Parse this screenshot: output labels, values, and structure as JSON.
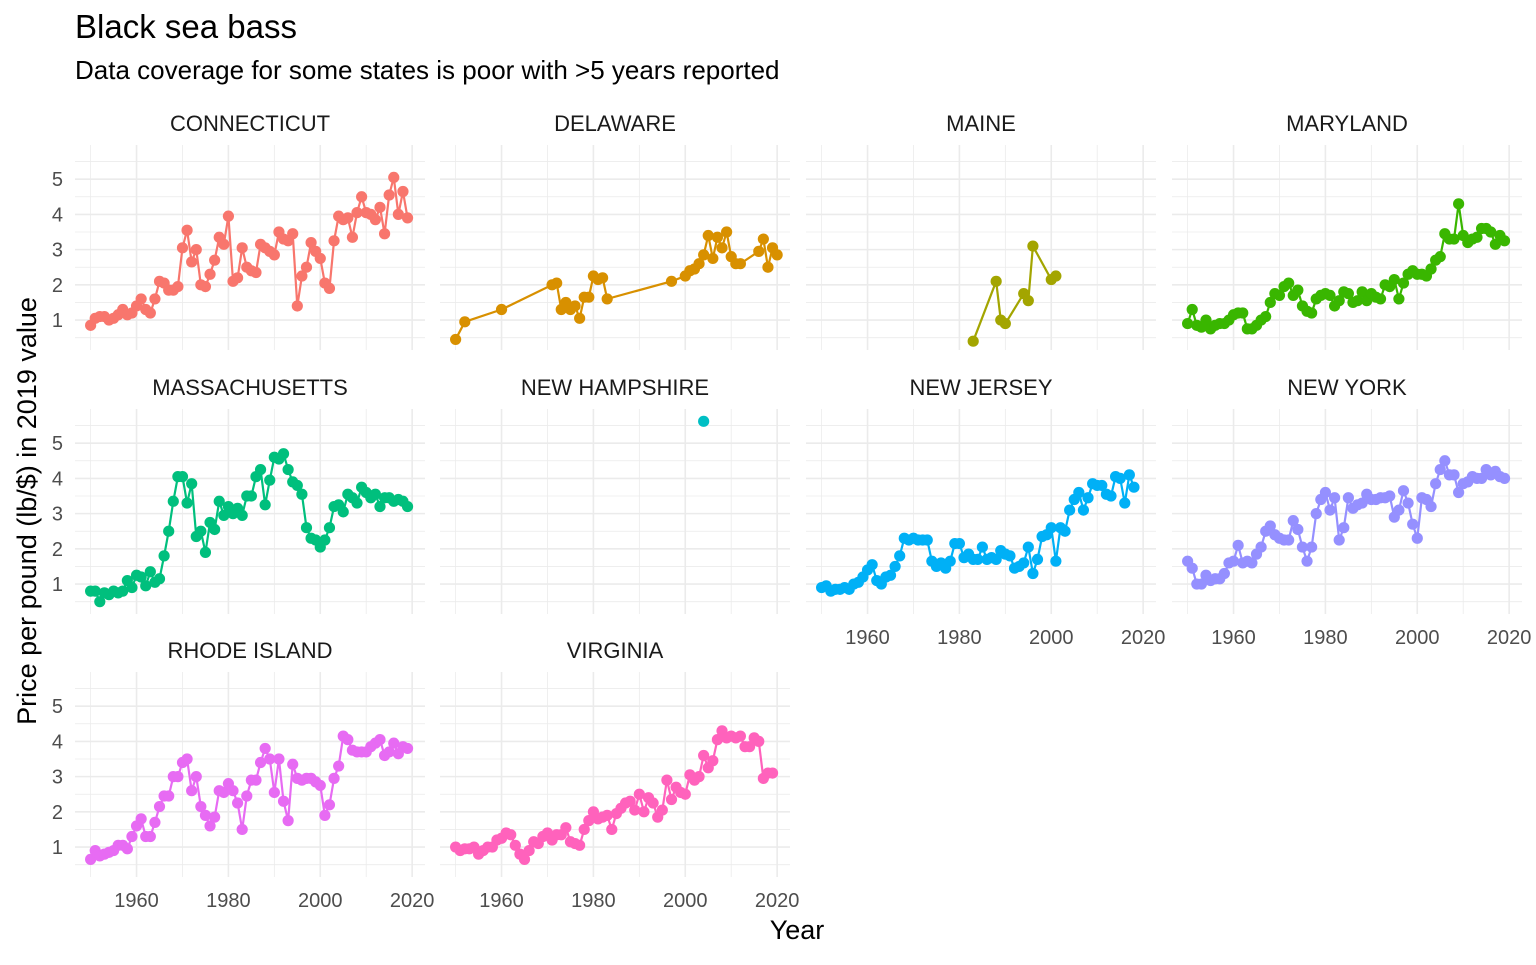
{
  "chart_data": {
    "type": "line",
    "title": "Black sea bass",
    "subtitle": "Data coverage for some states is poor with >5 years reported",
    "x_label": "Year",
    "y_label": "Price per pound (lb/$) in 2019 value",
    "xlim": [
      1946.6,
      2022.8
    ],
    "ylim": [
      0.15,
      5.97
    ],
    "xticks": [
      1960,
      1980,
      2000,
      2020
    ],
    "yticks": [
      1,
      2,
      3,
      4,
      5
    ],
    "x_minor_ticks": [
      1950,
      1970,
      1990,
      2010
    ],
    "y_minor_ticks": [
      0.5,
      1.5,
      2.5,
      3.5,
      4.5,
      5.5
    ],
    "grid": true,
    "columns": 4,
    "series": [
      {
        "name": "CONNECTICUT",
        "color": "#F8766D",
        "x": [
          1950,
          1951,
          1952,
          1953,
          1954,
          1955,
          1956,
          1957,
          1958,
          1959,
          1960,
          1961,
          1962,
          1963,
          1964,
          1965,
          1966,
          1967,
          1968,
          1969,
          1970,
          1971,
          1972,
          1973,
          1974,
          1975,
          1976,
          1977,
          1978,
          1979,
          1980,
          1981,
          1982,
          1983,
          1984,
          1985,
          1986,
          1987,
          1988,
          1989,
          1990,
          1991,
          1992,
          1993,
          1994,
          1995,
          1996,
          1997,
          1998,
          1999,
          2000,
          2001,
          2002,
          2003,
          2004,
          2005,
          2006,
          2007,
          2008,
          2009,
          2010,
          2011,
          2012,
          2013,
          2014,
          2015,
          2016,
          2017,
          2018,
          2019
        ],
        "values": [
          0.85,
          1.05,
          1.1,
          1.1,
          1.0,
          1.05,
          1.15,
          1.3,
          1.15,
          1.2,
          1.4,
          1.6,
          1.3,
          1.2,
          1.6,
          2.1,
          2.05,
          1.85,
          1.85,
          1.95,
          3.05,
          3.55,
          2.65,
          3.0,
          2.0,
          1.95,
          2.3,
          2.7,
          3.35,
          3.15,
          3.95,
          2.1,
          2.2,
          3.05,
          2.5,
          2.4,
          2.35,
          3.15,
          3.05,
          2.95,
          2.85,
          3.5,
          3.3,
          3.25,
          3.45,
          1.4,
          2.25,
          2.5,
          3.2,
          2.95,
          2.75,
          2.05,
          1.9,
          3.25,
          3.95,
          3.85,
          3.9,
          3.35,
          4.05,
          4.5,
          4.05,
          4.0,
          3.85,
          4.2,
          3.45,
          4.55,
          5.05,
          4.0,
          4.65,
          3.9
        ]
      },
      {
        "name": "DELAWARE",
        "color": "#D89000",
        "x": [
          1950,
          1952,
          1960,
          1971,
          1972,
          1973,
          1974,
          1975,
          1976,
          1977,
          1978,
          1979,
          1980,
          1981,
          1982,
          1983,
          1997,
          2000,
          2001,
          2002,
          2003,
          2004,
          2005,
          2006,
          2007,
          2008,
          2009,
          2010,
          2011,
          2012,
          2016,
          2017,
          2018,
          2019,
          2020
        ],
        "values": [
          0.45,
          0.95,
          1.3,
          2.0,
          2.05,
          1.3,
          1.5,
          1.3,
          1.4,
          1.05,
          1.65,
          1.65,
          2.25,
          2.15,
          2.2,
          1.6,
          2.1,
          2.25,
          2.4,
          2.45,
          2.6,
          2.85,
          3.4,
          2.75,
          3.35,
          3.05,
          3.5,
          2.8,
          2.6,
          2.6,
          2.95,
          3.3,
          2.5,
          3.05,
          2.85
        ]
      },
      {
        "name": "MAINE",
        "color": "#A3A500",
        "x": [
          1983,
          1988,
          1989,
          1990,
          1994,
          1995,
          1996,
          2000,
          2001
        ],
        "values": [
          0.4,
          2.1,
          1.0,
          0.9,
          1.75,
          1.55,
          3.1,
          2.15,
          2.25
        ]
      },
      {
        "name": "MARYLAND",
        "color": "#39B600",
        "x": [
          1950,
          1951,
          1952,
          1953,
          1954,
          1955,
          1956,
          1957,
          1958,
          1959,
          1960,
          1961,
          1962,
          1963,
          1964,
          1965,
          1966,
          1967,
          1968,
          1969,
          1970,
          1971,
          1972,
          1973,
          1974,
          1975,
          1976,
          1977,
          1978,
          1979,
          1980,
          1981,
          1982,
          1983,
          1984,
          1985,
          1986,
          1987,
          1988,
          1989,
          1990,
          1991,
          1992,
          1993,
          1994,
          1995,
          1996,
          1997,
          1998,
          1999,
          2000,
          2001,
          2002,
          2003,
          2004,
          2005,
          2006,
          2007,
          2008,
          2009,
          2010,
          2011,
          2012,
          2013,
          2014,
          2015,
          2016,
          2017,
          2018,
          2019
        ],
        "values": [
          0.9,
          1.3,
          0.85,
          0.8,
          1.0,
          0.75,
          0.85,
          0.9,
          0.9,
          1.0,
          1.15,
          1.2,
          1.2,
          0.75,
          0.75,
          0.85,
          1.0,
          1.1,
          1.5,
          1.75,
          1.7,
          1.95,
          2.05,
          1.7,
          1.85,
          1.4,
          1.25,
          1.2,
          1.6,
          1.7,
          1.75,
          1.7,
          1.4,
          1.55,
          1.8,
          1.75,
          1.5,
          1.55,
          1.8,
          1.55,
          1.75,
          1.65,
          1.6,
          2.0,
          1.95,
          2.15,
          1.6,
          2.05,
          2.3,
          2.4,
          2.3,
          2.3,
          2.25,
          2.45,
          2.7,
          2.8,
          3.45,
          3.3,
          3.3,
          4.3,
          3.4,
          3.2,
          3.3,
          3.35,
          3.6,
          3.6,
          3.5,
          3.15,
          3.4,
          3.25
        ]
      },
      {
        "name": "MASSACHUSETTS",
        "color": "#00BF7D",
        "x": [
          1950,
          1951,
          1952,
          1953,
          1954,
          1955,
          1956,
          1957,
          1958,
          1959,
          1960,
          1961,
          1962,
          1963,
          1964,
          1965,
          1966,
          1967,
          1968,
          1969,
          1970,
          1971,
          1972,
          1973,
          1974,
          1975,
          1976,
          1977,
          1978,
          1979,
          1980,
          1981,
          1982,
          1983,
          1984,
          1985,
          1986,
          1987,
          1988,
          1989,
          1990,
          1991,
          1992,
          1993,
          1994,
          1995,
          1996,
          1997,
          1998,
          1999,
          2000,
          2001,
          2002,
          2003,
          2004,
          2005,
          2006,
          2007,
          2008,
          2009,
          2010,
          2011,
          2012,
          2013,
          2014,
          2015,
          2016,
          2017,
          2018,
          2019
        ],
        "values": [
          0.8,
          0.8,
          0.5,
          0.75,
          0.7,
          0.8,
          0.75,
          0.8,
          1.1,
          0.9,
          1.25,
          1.2,
          0.95,
          1.35,
          1.05,
          1.15,
          1.8,
          2.5,
          3.35,
          4.05,
          4.05,
          3.3,
          3.85,
          2.35,
          2.5,
          1.9,
          2.75,
          2.55,
          3.35,
          2.95,
          3.2,
          3.0,
          3.15,
          2.95,
          3.5,
          3.5,
          4.05,
          4.25,
          3.25,
          3.95,
          4.6,
          4.55,
          4.7,
          4.25,
          3.9,
          3.8,
          3.55,
          2.6,
          2.3,
          2.25,
          2.05,
          2.25,
          2.6,
          3.2,
          3.25,
          3.05,
          3.55,
          3.45,
          3.3,
          3.75,
          3.6,
          3.45,
          3.55,
          3.2,
          3.45,
          3.45,
          3.35,
          3.4,
          3.35,
          3.2
        ]
      },
      {
        "name": "NEW HAMPSHIRE",
        "color": "#00BFC4",
        "x": [
          2004
        ],
        "values": [
          5.62
        ]
      },
      {
        "name": "NEW JERSEY",
        "color": "#00B0F6",
        "x": [
          1950,
          1951,
          1952,
          1953,
          1954,
          1955,
          1956,
          1957,
          1958,
          1959,
          1960,
          1961,
          1962,
          1963,
          1964,
          1965,
          1966,
          1967,
          1968,
          1969,
          1970,
          1971,
          1972,
          1973,
          1974,
          1975,
          1976,
          1977,
          1978,
          1979,
          1980,
          1981,
          1982,
          1983,
          1984,
          1985,
          1986,
          1987,
          1988,
          1989,
          1990,
          1991,
          1992,
          1993,
          1994,
          1995,
          1996,
          1997,
          1998,
          1999,
          2000,
          2001,
          2002,
          2003,
          2004,
          2005,
          2006,
          2007,
          2008,
          2009,
          2010,
          2011,
          2012,
          2013,
          2014,
          2015,
          2016,
          2017,
          2018
        ],
        "values": [
          0.9,
          0.95,
          0.8,
          0.85,
          0.85,
          0.9,
          0.85,
          1.0,
          1.05,
          1.2,
          1.4,
          1.55,
          1.1,
          1.0,
          1.2,
          1.25,
          1.5,
          1.8,
          2.3,
          2.25,
          2.3,
          2.25,
          2.25,
          2.25,
          1.65,
          1.5,
          1.6,
          1.45,
          1.65,
          2.15,
          2.15,
          1.75,
          1.85,
          1.7,
          1.7,
          2.05,
          1.7,
          1.75,
          1.7,
          1.95,
          1.85,
          1.8,
          1.45,
          1.5,
          1.6,
          2.05,
          1.3,
          1.7,
          2.35,
          2.4,
          2.6,
          1.65,
          2.6,
          2.5,
          3.1,
          3.4,
          3.6,
          3.1,
          3.45,
          3.85,
          3.8,
          3.8,
          3.55,
          3.5,
          4.05,
          4.0,
          3.3,
          4.1,
          3.75
        ]
      },
      {
        "name": "NEW YORK",
        "color": "#9590FF",
        "x": [
          1950,
          1951,
          1952,
          1953,
          1954,
          1955,
          1956,
          1957,
          1958,
          1959,
          1960,
          1961,
          1962,
          1963,
          1964,
          1965,
          1966,
          1967,
          1968,
          1969,
          1970,
          1971,
          1972,
          1973,
          1974,
          1975,
          1976,
          1977,
          1978,
          1979,
          1980,
          1981,
          1982,
          1983,
          1984,
          1985,
          1986,
          1987,
          1988,
          1989,
          1990,
          1991,
          1992,
          1993,
          1994,
          1995,
          1996,
          1997,
          1998,
          1999,
          2000,
          2001,
          2002,
          2003,
          2004,
          2005,
          2006,
          2007,
          2008,
          2009,
          2010,
          2011,
          2012,
          2013,
          2014,
          2015,
          2016,
          2017,
          2018,
          2019
        ],
        "values": [
          1.65,
          1.45,
          1.0,
          1.0,
          1.25,
          1.1,
          1.15,
          1.15,
          1.3,
          1.6,
          1.65,
          2.1,
          1.6,
          1.65,
          1.6,
          1.85,
          2.05,
          2.5,
          2.65,
          2.4,
          2.3,
          2.25,
          2.25,
          2.8,
          2.55,
          2.05,
          1.65,
          2.05,
          3.0,
          3.4,
          3.6,
          3.1,
          3.45,
          2.25,
          2.6,
          3.45,
          3.15,
          3.25,
          3.3,
          3.55,
          3.4,
          3.4,
          3.45,
          3.45,
          3.5,
          2.9,
          3.1,
          3.65,
          3.3,
          2.7,
          2.3,
          3.45,
          3.4,
          3.2,
          3.85,
          4.25,
          4.5,
          4.1,
          4.1,
          3.6,
          3.85,
          3.9,
          4.05,
          4.0,
          4.0,
          4.25,
          4.1,
          4.2,
          4.05,
          4.0
        ]
      },
      {
        "name": "RHODE ISLAND",
        "color": "#E76BF3",
        "x": [
          1950,
          1951,
          1952,
          1953,
          1954,
          1955,
          1956,
          1957,
          1958,
          1959,
          1960,
          1961,
          1962,
          1963,
          1964,
          1965,
          1966,
          1967,
          1968,
          1969,
          1970,
          1971,
          1972,
          1973,
          1974,
          1975,
          1976,
          1977,
          1978,
          1979,
          1980,
          1981,
          1982,
          1983,
          1984,
          1985,
          1986,
          1987,
          1988,
          1989,
          1990,
          1991,
          1992,
          1993,
          1994,
          1995,
          1996,
          1997,
          1998,
          1999,
          2000,
          2001,
          2002,
          2003,
          2004,
          2005,
          2006,
          2007,
          2008,
          2009,
          2010,
          2011,
          2012,
          2013,
          2014,
          2015,
          2016,
          2017,
          2018,
          2019
        ],
        "values": [
          0.65,
          0.9,
          0.75,
          0.8,
          0.85,
          0.9,
          1.05,
          1.05,
          0.95,
          1.3,
          1.6,
          1.8,
          1.3,
          1.3,
          1.7,
          2.15,
          2.45,
          2.45,
          3.0,
          3.0,
          3.4,
          3.5,
          2.6,
          3.0,
          2.15,
          1.9,
          1.6,
          1.85,
          2.6,
          2.55,
          2.8,
          2.6,
          2.25,
          1.5,
          2.45,
          2.9,
          2.9,
          3.4,
          3.8,
          3.5,
          2.55,
          3.5,
          2.3,
          1.75,
          3.35,
          2.95,
          2.9,
          2.95,
          2.95,
          2.85,
          2.75,
          1.9,
          2.2,
          2.95,
          3.3,
          4.15,
          4.05,
          3.75,
          3.7,
          3.7,
          3.7,
          3.85,
          3.95,
          4.05,
          3.6,
          3.7,
          3.95,
          3.65,
          3.85,
          3.8
        ]
      },
      {
        "name": "VIRGINIA",
        "color": "#FF62BC",
        "x": [
          1950,
          1951,
          1952,
          1953,
          1954,
          1955,
          1956,
          1957,
          1958,
          1959,
          1960,
          1961,
          1962,
          1963,
          1964,
          1965,
          1966,
          1967,
          1968,
          1969,
          1970,
          1971,
          1972,
          1973,
          1974,
          1975,
          1976,
          1977,
          1978,
          1979,
          1980,
          1981,
          1982,
          1983,
          1984,
          1985,
          1986,
          1987,
          1988,
          1989,
          1990,
          1991,
          1992,
          1993,
          1994,
          1995,
          1996,
          1997,
          1998,
          1999,
          2000,
          2001,
          2002,
          2003,
          2004,
          2005,
          2006,
          2007,
          2008,
          2009,
          2010,
          2011,
          2012,
          2013,
          2014,
          2015,
          2016,
          2017,
          2018,
          2019
        ],
        "values": [
          1.0,
          0.9,
          0.95,
          0.95,
          1.0,
          0.8,
          0.9,
          1.0,
          1.0,
          1.2,
          1.25,
          1.4,
          1.35,
          1.05,
          0.8,
          0.65,
          0.9,
          1.15,
          1.1,
          1.3,
          1.4,
          1.2,
          1.35,
          1.35,
          1.55,
          1.15,
          1.1,
          1.05,
          1.5,
          1.75,
          2.0,
          1.8,
          1.85,
          1.9,
          1.5,
          1.95,
          2.1,
          2.25,
          2.3,
          2.05,
          2.5,
          2.0,
          2.4,
          2.25,
          1.85,
          2.05,
          2.9,
          2.35,
          2.7,
          2.55,
          2.5,
          3.05,
          2.9,
          3.0,
          3.6,
          3.25,
          3.45,
          4.05,
          4.3,
          4.1,
          4.15,
          4.1,
          4.15,
          3.85,
          3.85,
          4.1,
          4.0,
          2.95,
          3.1,
          3.1
        ]
      }
    ]
  }
}
